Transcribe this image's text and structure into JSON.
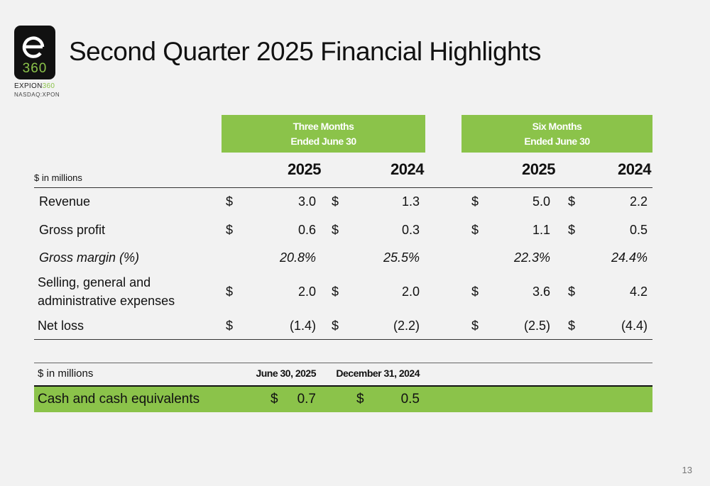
{
  "logo": {
    "box_number": "360",
    "wordmark_prefix": "EXPION",
    "wordmark_suffix": "360",
    "ticker": "NASDAQ:XPON",
    "accent_color": "#8bc34a"
  },
  "title": "Second Quarter 2025 Financial Highlights",
  "income_table": {
    "unit_label": "$ in millions",
    "group_headers": [
      {
        "line1": "Three Months",
        "line2": "Ended June 30"
      },
      {
        "line1": "Six Months",
        "line2": "Ended June 30"
      }
    ],
    "years": [
      "2025",
      "2024",
      "2025",
      "2024"
    ],
    "currency_symbol": "$",
    "rows": [
      {
        "label": "Revenue",
        "values": [
          "3.0",
          "1.3",
          "5.0",
          "2.2"
        ],
        "show_dollar": true,
        "italic": false
      },
      {
        "label": "Gross profit",
        "values": [
          "0.6",
          "0.3",
          "1.1",
          "0.5"
        ],
        "show_dollar": true,
        "italic": false
      },
      {
        "label": "Gross margin (%)",
        "values": [
          "20.8%",
          "25.5%",
          "22.3%",
          "24.4%"
        ],
        "show_dollar": false,
        "italic": true
      },
      {
        "label_line1": "Selling, general and",
        "label_line2": "administrative expenses",
        "values": [
          "2.0",
          "2.0",
          "3.6",
          "4.2"
        ],
        "show_dollar": true,
        "italic": false
      },
      {
        "label": "Net loss",
        "values": [
          "(1.4)",
          "(2.2)",
          "(2.5)",
          "(4.4)"
        ],
        "show_dollar": true,
        "italic": false
      }
    ]
  },
  "cash_table": {
    "unit_label": "$ in millions",
    "column_headers": [
      "June 30, 2025",
      "December 31, 2024"
    ],
    "currency_symbol": "$",
    "row": {
      "label": "Cash and cash equivalents",
      "values": [
        "0.7",
        "0.5"
      ]
    }
  },
  "page_number": "13"
}
